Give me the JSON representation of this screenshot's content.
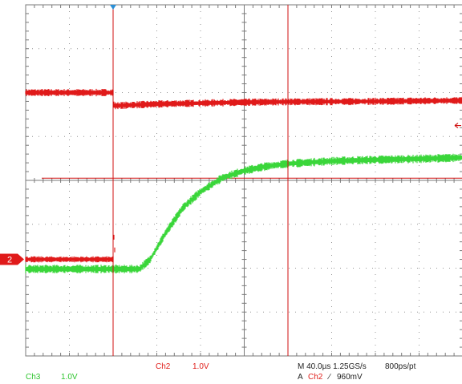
{
  "colors": {
    "ch2": "#e01a1a",
    "ch3": "#3ad63a",
    "grid": "#7a7a7a",
    "cursor": "#d01010",
    "trigger_marker": "#2a8fd6"
  },
  "readouts": {
    "ch2_label": "Ch2",
    "ch2_scale": "1.0V",
    "ch3_label": "Ch3",
    "ch3_scale": "1.0V",
    "timebase": "M 40.0µs 1.25GS/s",
    "record": "800ps/pt",
    "trigger_prefix": "A",
    "trigger_source": "Ch2",
    "trigger_slope": "∕",
    "trigger_level": "960mV"
  },
  "ch2_marker_label": "2",
  "chart_data": {
    "type": "line",
    "grid": true,
    "divisions": {
      "x": 10,
      "y": 8
    },
    "units": {
      "x": "div",
      "y": "div"
    },
    "xlim": [
      0,
      10
    ],
    "ylim": [
      -4,
      4
    ],
    "series": [
      {
        "channel": "Ch2",
        "color": "#e01a1a",
        "x": [
          0,
          2.0,
          2.02,
          2.05,
          2.5,
          3.0,
          4.0,
          5.0,
          6.0,
          8.0,
          10.0
        ],
        "y": [
          2.0,
          2.0,
          1.7,
          1.7,
          1.72,
          1.74,
          1.76,
          1.78,
          1.79,
          1.8,
          1.82
        ],
        "noise": 0.06
      },
      {
        "channel": "Ch3",
        "color": "#3ad63a",
        "x": [
          0,
          2.6,
          2.85,
          3.2,
          3.6,
          4.0,
          4.5,
          5.0,
          5.5,
          6.0,
          7.0,
          8.0,
          9.0,
          10.0
        ],
        "y": [
          -2.02,
          -2.02,
          -1.8,
          -1.2,
          -0.62,
          -0.26,
          0.06,
          0.22,
          0.32,
          0.38,
          0.44,
          0.47,
          0.49,
          0.52
        ],
        "noise": 0.07
      },
      {
        "channel": "Ch2-segment",
        "color": "#e01a1a",
        "x": [
          0,
          2.0,
          2.02,
          2.05
        ],
        "y": [
          -1.8,
          -1.8,
          -1.25,
          -1.85
        ],
        "noise": 0.05
      }
    ],
    "cursors": {
      "vertical": [
        2.0,
        6.0
      ],
      "horizontal": [
        2.0,
        0.0
      ]
    },
    "ref_lines_y": [
      2.0,
      0.05
    ]
  }
}
